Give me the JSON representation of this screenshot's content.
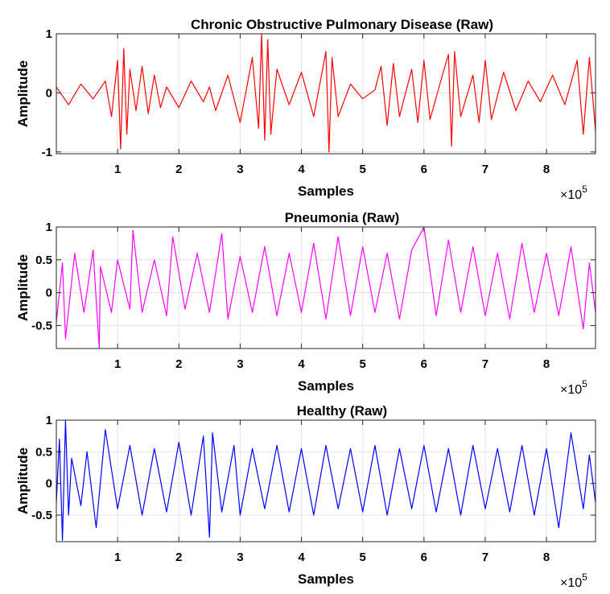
{
  "chart_data": [
    {
      "type": "line",
      "title": "Chronic Obstructive Pulmonary Disease (Raw)",
      "xlabel": "Samples",
      "ylabel": "Amplitude",
      "x_exponent_base": "10",
      "x_exponent_power": "5",
      "xlim": [
        0,
        8.8
      ],
      "ylim": [
        -1.03,
        1
      ],
      "xticks": [
        1,
        2,
        3,
        4,
        5,
        6,
        7,
        8
      ],
      "xticklabels": [
        "1",
        "2",
        "3",
        "4",
        "5",
        "6",
        "7",
        "8"
      ],
      "yticks": [
        -1,
        0,
        1
      ],
      "yticklabels": [
        "-1",
        "0",
        "1"
      ],
      "grid": true,
      "color": "#ff0000",
      "series": [
        {
          "x": [
            0.0,
            0.2,
            0.4,
            0.6,
            0.8,
            0.9,
            1.0,
            1.05,
            1.1,
            1.15,
            1.2,
            1.3,
            1.4,
            1.5,
            1.6,
            1.7,
            1.8,
            2.0,
            2.2,
            2.4,
            2.5,
            2.6,
            2.8,
            3.0,
            3.2,
            3.3,
            3.35,
            3.4,
            3.45,
            3.5,
            3.6,
            3.8,
            4.0,
            4.2,
            4.4,
            4.45,
            4.5,
            4.6,
            4.8,
            5.0,
            5.2,
            5.3,
            5.4,
            5.5,
            5.6,
            5.8,
            5.9,
            6.0,
            6.1,
            6.3,
            6.4,
            6.45,
            6.5,
            6.6,
            6.8,
            6.9,
            7.0,
            7.1,
            7.3,
            7.5,
            7.7,
            7.9,
            8.1,
            8.3,
            8.5,
            8.6,
            8.7,
            8.8
          ],
          "y": [
            0.1,
            -0.2,
            0.15,
            -0.1,
            0.2,
            -0.4,
            0.55,
            -0.95,
            0.75,
            -0.7,
            0.4,
            -0.3,
            0.45,
            -0.35,
            0.3,
            -0.25,
            0.1,
            -0.25,
            0.2,
            -0.15,
            0.1,
            -0.3,
            0.3,
            -0.5,
            0.6,
            -0.6,
            1.0,
            -0.8,
            0.9,
            -0.7,
            0.4,
            -0.2,
            0.35,
            -0.4,
            0.7,
            -1.0,
            0.6,
            -0.4,
            0.15,
            -0.1,
            0.05,
            0.45,
            -0.55,
            0.5,
            -0.4,
            0.4,
            -0.5,
            0.55,
            -0.45,
            0.3,
            0.65,
            -0.9,
            0.7,
            -0.4,
            0.3,
            -0.5,
            0.55,
            -0.45,
            0.35,
            -0.3,
            0.2,
            -0.15,
            0.3,
            -0.2,
            0.55,
            -0.7,
            0.6,
            -0.65
          ]
        }
      ]
    },
    {
      "type": "line",
      "title": "Pneumonia (Raw)",
      "xlabel": "Samples",
      "ylabel": "Amplitude",
      "x_exponent_base": "10",
      "x_exponent_power": "5",
      "xlim": [
        0,
        8.8
      ],
      "ylim": [
        -0.85,
        1
      ],
      "xticks": [
        1,
        2,
        3,
        4,
        5,
        6,
        7,
        8
      ],
      "xticklabels": [
        "1",
        "2",
        "3",
        "4",
        "5",
        "6",
        "7",
        "8"
      ],
      "yticks": [
        -0.5,
        0,
        0.5,
        1
      ],
      "yticklabels": [
        "-0.5",
        "0",
        "0.5",
        "1"
      ],
      "grid": true,
      "color": "#ff00ff",
      "series": [
        {
          "x": [
            0.0,
            0.1,
            0.15,
            0.3,
            0.45,
            0.6,
            0.7,
            0.72,
            0.9,
            1.0,
            1.2,
            1.25,
            1.4,
            1.6,
            1.8,
            1.9,
            2.1,
            2.3,
            2.5,
            2.7,
            2.8,
            3.0,
            3.2,
            3.4,
            3.6,
            3.8,
            4.0,
            4.2,
            4.4,
            4.6,
            4.8,
            5.0,
            5.2,
            5.4,
            5.6,
            5.8,
            6.0,
            6.2,
            6.4,
            6.6,
            6.8,
            7.0,
            7.2,
            7.4,
            7.6,
            7.8,
            8.0,
            8.2,
            8.4,
            8.6,
            8.7,
            8.8
          ],
          "y": [
            -0.45,
            0.45,
            -0.7,
            0.6,
            -0.3,
            0.65,
            -0.85,
            0.4,
            -0.3,
            0.5,
            -0.25,
            0.95,
            -0.3,
            0.5,
            -0.35,
            0.85,
            -0.25,
            0.6,
            -0.3,
            0.9,
            -0.4,
            0.55,
            -0.3,
            0.7,
            -0.35,
            0.6,
            -0.3,
            0.75,
            -0.4,
            0.85,
            -0.35,
            0.7,
            -0.3,
            0.6,
            -0.4,
            0.65,
            1.0,
            -0.35,
            0.8,
            -0.3,
            0.7,
            -0.35,
            0.6,
            -0.4,
            0.75,
            -0.3,
            0.6,
            -0.35,
            0.7,
            -0.55,
            0.45,
            -0.3
          ]
        }
      ]
    },
    {
      "type": "line",
      "title": "Healthy (Raw)",
      "xlabel": "Samples",
      "ylabel": "Amplitude",
      "x_exponent_base": "10",
      "x_exponent_power": "5",
      "xlim": [
        0,
        8.8
      ],
      "ylim": [
        -0.92,
        1
      ],
      "xticks": [
        1,
        2,
        3,
        4,
        5,
        6,
        7,
        8
      ],
      "xticklabels": [
        "1",
        "2",
        "3",
        "4",
        "5",
        "6",
        "7",
        "8"
      ],
      "yticks": [
        -0.5,
        0,
        0.5,
        1
      ],
      "yticklabels": [
        "-0.5",
        "0",
        "0.5",
        "1"
      ],
      "grid": true,
      "color": "#0000ff",
      "series": [
        {
          "x": [
            0.0,
            0.05,
            0.1,
            0.15,
            0.2,
            0.25,
            0.4,
            0.5,
            0.65,
            0.8,
            1.0,
            1.2,
            1.4,
            1.6,
            1.8,
            2.0,
            2.2,
            2.4,
            2.5,
            2.55,
            2.7,
            2.9,
            3.0,
            3.2,
            3.4,
            3.6,
            3.8,
            4.0,
            4.2,
            4.4,
            4.6,
            4.8,
            5.0,
            5.2,
            5.4,
            5.6,
            5.8,
            6.0,
            6.2,
            6.4,
            6.6,
            6.8,
            7.0,
            7.2,
            7.4,
            7.6,
            7.8,
            8.0,
            8.2,
            8.4,
            8.6,
            8.7,
            8.8
          ],
          "y": [
            -0.3,
            0.7,
            -0.9,
            1.0,
            -0.5,
            0.4,
            -0.35,
            0.5,
            -0.7,
            0.85,
            -0.4,
            0.6,
            -0.5,
            0.55,
            -0.45,
            0.65,
            -0.5,
            0.75,
            -0.85,
            0.8,
            -0.45,
            0.6,
            -0.5,
            0.55,
            -0.4,
            0.6,
            -0.45,
            0.55,
            -0.5,
            0.6,
            -0.4,
            0.55,
            -0.45,
            0.6,
            -0.5,
            0.55,
            -0.4,
            0.6,
            -0.45,
            0.55,
            -0.5,
            0.6,
            -0.4,
            0.55,
            -0.45,
            0.6,
            -0.5,
            0.55,
            -0.7,
            0.8,
            -0.4,
            0.45,
            -0.3
          ]
        }
      ]
    }
  ]
}
